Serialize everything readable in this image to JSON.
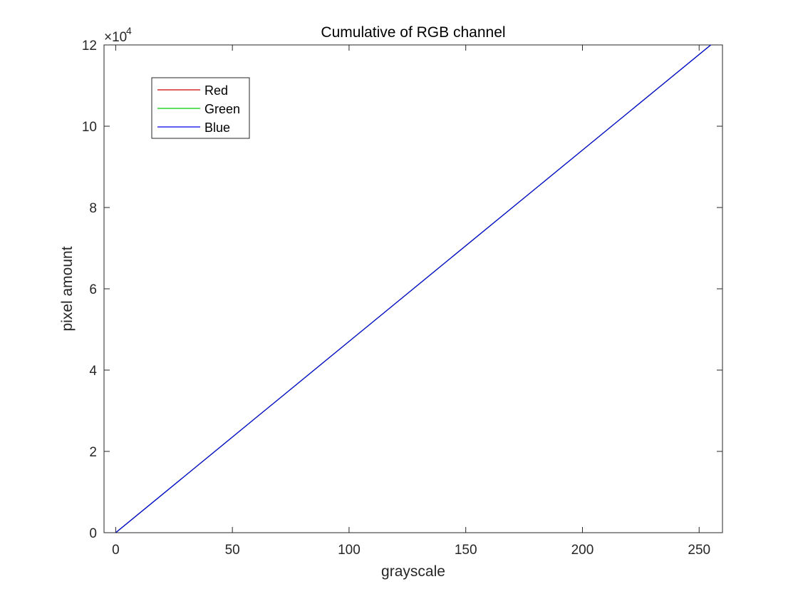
{
  "chart_data": {
    "type": "line",
    "title": "Cumulative of RGB channel",
    "xlabel": "grayscale",
    "ylabel": "pixel amount",
    "y_exponent_label": "×10",
    "y_exponent_power": "4",
    "xlim": [
      -5,
      260
    ],
    "ylim": [
      0,
      12
    ],
    "xticks": [
      0,
      50,
      100,
      150,
      200,
      250
    ],
    "xtick_labels": [
      "0",
      "50",
      "100",
      "150",
      "200",
      "250"
    ],
    "yticks": [
      0,
      2,
      4,
      6,
      8,
      10,
      12
    ],
    "ytick_labels": [
      "0",
      "2",
      "4",
      "6",
      "8",
      "10",
      "12"
    ],
    "grid": false,
    "legend_placement": "top-left",
    "series": [
      {
        "name": "Red",
        "color": "#cc0000",
        "x": [
          0,
          255
        ],
        "y": [
          0,
          12
        ]
      },
      {
        "name": "Green",
        "color": "#00cc00",
        "x": [
          0,
          255
        ],
        "y": [
          0,
          12
        ]
      },
      {
        "name": "Blue",
        "color": "#0000e6",
        "x": [
          0,
          255
        ],
        "y": [
          0,
          12
        ]
      }
    ]
  }
}
